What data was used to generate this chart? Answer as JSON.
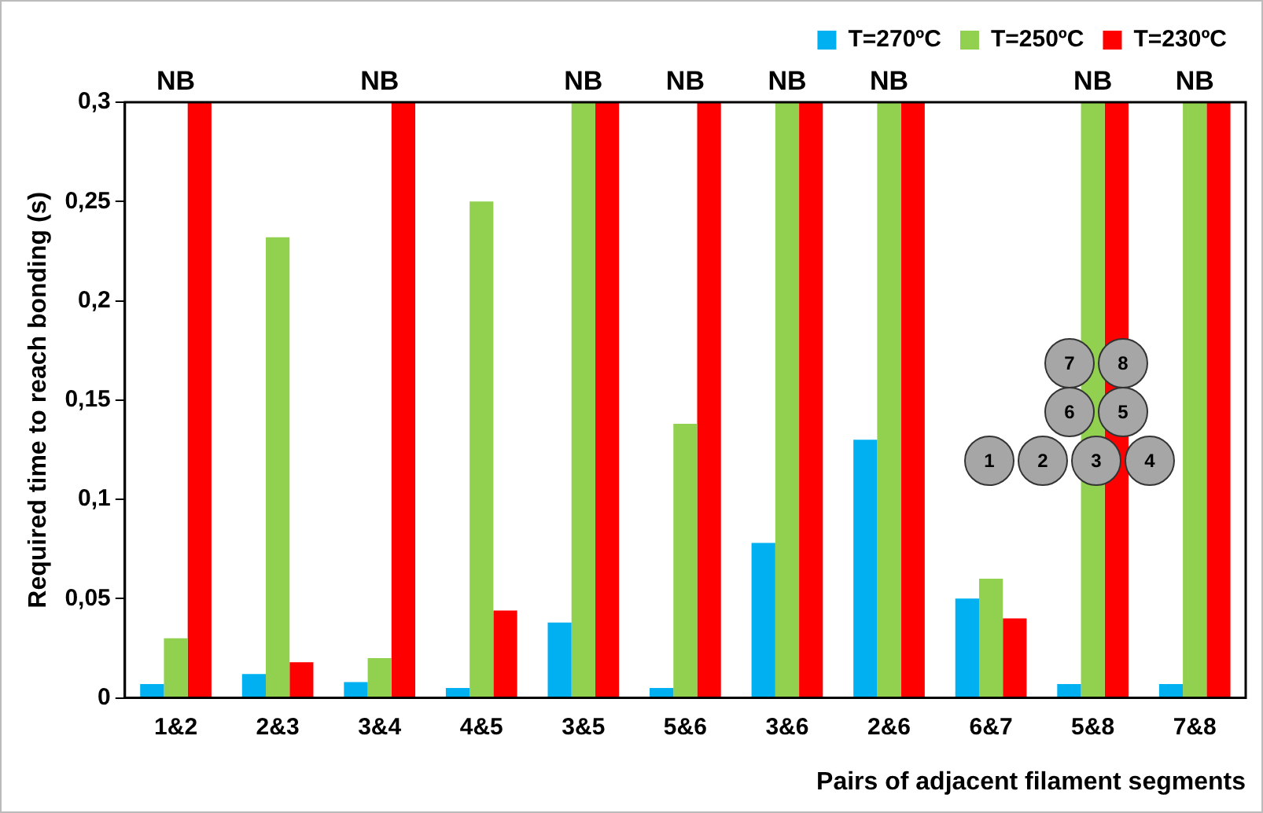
{
  "chart_data": {
    "type": "bar",
    "ylabel": "Required time to reach bonding (s)",
    "xlabel": "Pairs of adjacent filament segments",
    "categories": [
      "1&2",
      "2&3",
      "3&4",
      "4&5",
      "3&5",
      "5&6",
      "3&6",
      "2&6",
      "6&7",
      "5&8",
      "7&8"
    ],
    "series": [
      {
        "name": "T=270ºC",
        "color": "#00b0f0",
        "values": [
          0.007,
          0.012,
          0.008,
          0.005,
          0.038,
          0.005,
          0.078,
          0.13,
          0.05,
          0.007,
          0.007
        ]
      },
      {
        "name": "T=250ºC",
        "color": "#92d050",
        "values": [
          0.03,
          0.232,
          0.02,
          0.25,
          0.3,
          0.138,
          0.3,
          0.3,
          0.06,
          0.3,
          0.3
        ]
      },
      {
        "name": "T=230ºC",
        "color": "#ff0000",
        "values": [
          0.3,
          0.018,
          0.3,
          0.044,
          0.3,
          0.3,
          0.3,
          0.3,
          0.04,
          0.3,
          0.3
        ]
      }
    ],
    "ylim": [
      0,
      0.3
    ],
    "yticks": [
      0,
      {
        "value": 0.05,
        "label": "0,05"
      },
      {
        "value": 0.1,
        "label": "0,1"
      },
      {
        "value": 0.15,
        "label": "0,15"
      },
      {
        "value": 0.2,
        "label": "0,2"
      },
      {
        "value": 0.25,
        "label": "0,25"
      },
      {
        "value": 0.3,
        "label": "0,3"
      }
    ],
    "grid": false,
    "legend": "top right",
    "annotations": [
      "NB",
      "NB",
      "NB",
      {
        "text": "NB",
        "x": "3&5",
        "y": 0.3
      },
      {
        "text": "NB",
        "x": "3&6",
        "y": 0.3
      },
      {
        "text": "NB",
        "x": "2&6",
        "y": 0.3
      },
      {
        "text": "NB",
        "x": "5&8",
        "y": 0.3
      },
      {
        "text": "NB",
        "x": "7&8",
        "y": 0.3
      },
      "1",
      "2",
      "3",
      "4",
      "6",
      "5",
      "7",
      "8"
    ]
  }
}
